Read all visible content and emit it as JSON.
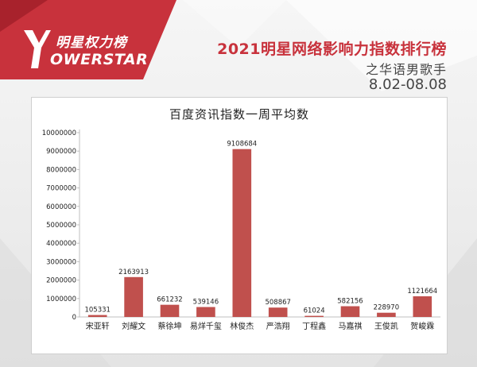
{
  "brand": {
    "name_cn": "明星权力榜",
    "name_en": "OWERSTAR",
    "accent_color": "#c8323c"
  },
  "header": {
    "title": "2021明星网络影响力指数排行榜",
    "subtitle": "之华语男歌手",
    "date_range": "8.02-08.08"
  },
  "chart_data": {
    "type": "bar",
    "title": "百度资讯指数一周平均数",
    "xlabel": "",
    "ylabel": "",
    "ylim": [
      0,
      10000000
    ],
    "yticks": [
      0,
      1000000,
      2000000,
      3000000,
      4000000,
      5000000,
      6000000,
      7000000,
      8000000,
      9000000,
      10000000
    ],
    "grid": false,
    "legend": "none",
    "bar_color": "#c0504d",
    "categories": [
      "宋亚轩",
      "刘耀文",
      "蔡徐坤",
      "易烊千玺",
      "林俊杰",
      "严浩翔",
      "丁程鑫",
      "马嘉祺",
      "王俊凯",
      "贺峻霖"
    ],
    "values": [
      105331,
      2163913,
      661232,
      539146,
      9108684,
      508867,
      61024,
      582156,
      228970,
      1121664
    ]
  }
}
